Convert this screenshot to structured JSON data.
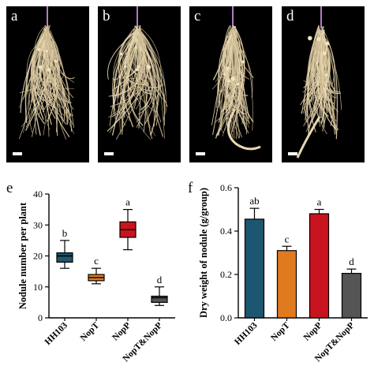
{
  "photos": [
    {
      "label": "a"
    },
    {
      "label": "b"
    },
    {
      "label": "c"
    },
    {
      "label": "d"
    }
  ],
  "colors": {
    "root": "#e8d7b0",
    "root_dark": "#c9b68f",
    "HH103": "#1c5670",
    "NopT": "#e07a1f",
    "NopP": "#c8141e",
    "NopT&NopP": "#555555"
  },
  "chart_data": [
    {
      "panel_label": "e",
      "type": "box",
      "categories": [
        "HH103",
        "NopT",
        "NopP",
        "NopT&NopP"
      ],
      "boxes": [
        {
          "min": 16,
          "q1": 18,
          "median": 20,
          "q3": 21,
          "max": 25,
          "letter": "b"
        },
        {
          "min": 11,
          "q1": 12,
          "median": 13,
          "q3": 14,
          "max": 16,
          "letter": "c"
        },
        {
          "min": 22,
          "q1": 26,
          "median": 28.5,
          "q3": 31,
          "max": 35,
          "letter": "a"
        },
        {
          "min": 4,
          "q1": 5,
          "median": 6.5,
          "q3": 7,
          "max": 10,
          "letter": "d"
        }
      ],
      "ylabel": "Nodule number per plant",
      "ylim": [
        0,
        40
      ],
      "yticks": [
        0,
        10,
        20,
        30,
        40
      ]
    },
    {
      "panel_label": "f",
      "type": "bar",
      "categories": [
        "HH103",
        "NopT",
        "NopP",
        "NopT&NopP"
      ],
      "values": [
        0.455,
        0.31,
        0.48,
        0.205
      ],
      "errors": [
        0.05,
        0.02,
        0.02,
        0.02
      ],
      "letters": [
        "ab",
        "c",
        "a",
        "d"
      ],
      "ylabel": "Dry weight of nodule (g/group)",
      "ylim": [
        0,
        0.6
      ],
      "yticks": [
        "0.0",
        "0.2",
        "0.4",
        "0.6"
      ]
    }
  ]
}
